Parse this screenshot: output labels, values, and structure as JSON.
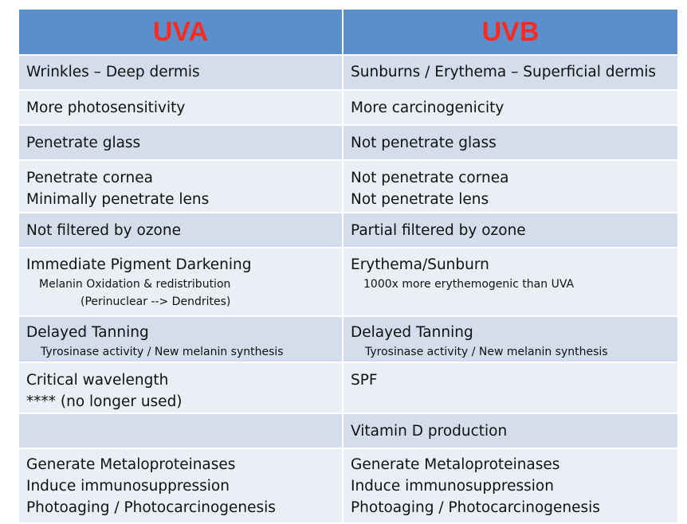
{
  "header": {
    "left": "UVA",
    "right": "UVB"
  },
  "rows": [
    {
      "uva": [
        {
          "text": "Wrinkles – Deep dermis"
        }
      ],
      "uvb": [
        {
          "text": "Sunburns / Erythema – Superficial dermis"
        }
      ]
    },
    {
      "uva": [
        {
          "text": "More photosensitivity"
        }
      ],
      "uvb": [
        {
          "text": "More carcinogenicity"
        }
      ]
    },
    {
      "uva": [
        {
          "text": "Penetrate glass"
        }
      ],
      "uvb": [
        {
          "text": "Not penetrate glass"
        }
      ]
    },
    {
      "uva": [
        {
          "text": "Penetrate cornea"
        },
        {
          "text": "Minimally penetrate lens"
        }
      ],
      "uvb": [
        {
          "text": "Not penetrate cornea"
        },
        {
          "text": "Not penetrate lens"
        }
      ]
    },
    {
      "uva": [
        {
          "text": "Not filtered by ozone"
        }
      ],
      "uvb": [
        {
          "text": "Partial filtered by ozone"
        }
      ]
    },
    {
      "uva": [
        {
          "text": "Immediate Pigment Darkening"
        },
        {
          "text": "Melanin Oxidation & redistribution",
          "sub": true,
          "indent": 1
        },
        {
          "text": "(Perinuclear --> Dendrites)",
          "sub": true,
          "indent": 2
        }
      ],
      "uvb": [
        {
          "text": "Erythema/Sunburn"
        },
        {
          "text": "1000x more erythemogenic than UVA",
          "sub": true,
          "indent": 1
        }
      ]
    },
    {
      "uva": [
        {
          "text": "Delayed Tanning"
        },
        {
          "text": "Tyrosinase activity / New melanin synthesis",
          "sub": true,
          "indent": 3
        }
      ],
      "uvb": [
        {
          "text": "Delayed Tanning"
        },
        {
          "text": "Tyrosinase activity / New melanin synthesis",
          "sub": true,
          "indent": 3
        }
      ]
    },
    {
      "uva": [
        {
          "text": "Critical wavelength"
        },
        {
          "text": " **** (no longer used)"
        }
      ],
      "uvb": [
        {
          "text": "SPF"
        }
      ]
    },
    {
      "uva": [],
      "uvb": [
        {
          "text": "Vitamin D production"
        }
      ]
    },
    {
      "uva": [
        {
          "text": "Generate Metaloproteinases"
        },
        {
          "text": "Induce immunosuppression"
        },
        {
          "text": "Photoaging / Photocarcinogenesis"
        }
      ],
      "uvb": [
        {
          "text": "Generate Metaloproteinases"
        },
        {
          "text": "Induce immunosuppression"
        },
        {
          "text": "Photoaging / Photocarcinogenesis"
        }
      ]
    }
  ]
}
